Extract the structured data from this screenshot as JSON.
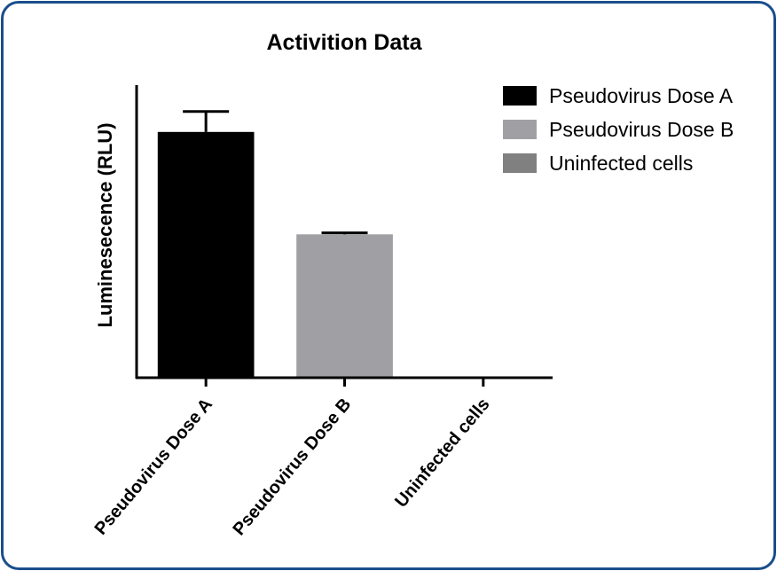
{
  "chart_data": {
    "type": "bar",
    "title": "Activition Data",
    "xlabel": "",
    "ylabel": "Luminesecence (RLU)",
    "categories": [
      "Pseudovirus Dose A",
      "Pseudovirus Dose B",
      "Uninfected cells"
    ],
    "values": [
      84,
      49,
      0
    ],
    "errors": [
      7,
      0.5,
      0
    ],
    "ylim": [
      0,
      100
    ],
    "colors": [
      "#000000",
      "#a0a0a4",
      "#808080"
    ],
    "legend_position": "top-right",
    "legend": [
      "Pseudovirus Dose A",
      "Pseudovirus Dose B",
      "Uninfected cells"
    ],
    "grid": false,
    "y_ticks_shown": false
  }
}
